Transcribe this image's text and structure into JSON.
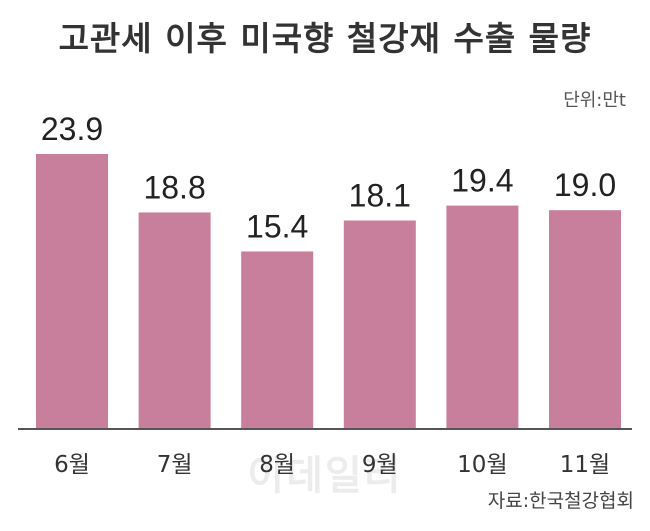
{
  "title": "고관세 이후 미국향 철강재 수출 물량",
  "unit": "단위:만t",
  "source": "자료:한국철강협회",
  "watermark": "이데일리",
  "colors": {
    "bar": "#c87f9b",
    "axis": "#555555",
    "text": "#333333"
  },
  "chart_data": {
    "type": "bar",
    "title": "고관세 이후 미국향 철강재 수출 물량",
    "categories": [
      "6월",
      "7월",
      "8월",
      "9월",
      "10월",
      "11월"
    ],
    "values": [
      23.9,
      18.8,
      15.4,
      18.1,
      19.4,
      19.0
    ],
    "value_labels": [
      "23.9",
      "18.8",
      "15.4",
      "18.1",
      "19.4",
      "19.0"
    ],
    "ylim": [
      0,
      23.9
    ],
    "grid": false,
    "legend": "none"
  }
}
